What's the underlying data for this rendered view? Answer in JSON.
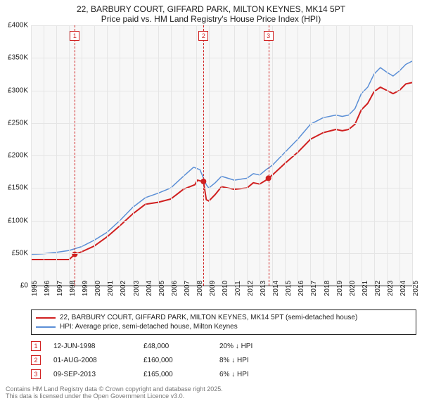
{
  "title": {
    "line1": "22, BARBURY COURT, GIFFARD PARK, MILTON KEYNES, MK14 5PT",
    "line2": "Price paid vs. HM Land Registry's House Price Index (HPI)"
  },
  "chart": {
    "type": "line",
    "background_color": "#f7f7f7",
    "grid_color": "#e5e5e5",
    "ylim": [
      0,
      400000
    ],
    "ytick_step": 50000,
    "ytick_labels": [
      "£0",
      "£50K",
      "£100K",
      "£150K",
      "£200K",
      "£250K",
      "£300K",
      "£350K",
      "£400K"
    ],
    "xlim": [
      1995,
      2025
    ],
    "xtick_step": 1,
    "xtick_labels": [
      "1995",
      "1996",
      "1997",
      "1998",
      "1999",
      "2000",
      "2001",
      "2002",
      "2003",
      "2004",
      "2005",
      "2006",
      "2007",
      "2008",
      "2009",
      "2010",
      "2011",
      "2012",
      "2013",
      "2014",
      "2015",
      "2016",
      "2017",
      "2018",
      "2019",
      "2020",
      "2021",
      "2022",
      "2023",
      "2024",
      "2025"
    ],
    "series": [
      {
        "name": "price_paid",
        "color": "#d02020",
        "width": 2,
        "points": [
          [
            1995,
            40000
          ],
          [
            1996,
            40000
          ],
          [
            1997,
            40000
          ],
          [
            1998,
            40000
          ],
          [
            1998.45,
            48000
          ],
          [
            1999,
            52000
          ],
          [
            2000,
            61000
          ],
          [
            2001,
            75000
          ],
          [
            2002,
            92000
          ],
          [
            2003,
            110000
          ],
          [
            2004,
            125000
          ],
          [
            2005,
            128000
          ],
          [
            2006,
            133000
          ],
          [
            2007,
            148000
          ],
          [
            2007.9,
            155000
          ],
          [
            2008.1,
            162000
          ],
          [
            2008.5,
            160000
          ],
          [
            2008.58,
            160000
          ],
          [
            2008.8,
            132000
          ],
          [
            2009,
            130000
          ],
          [
            2009.5,
            140000
          ],
          [
            2010,
            152000
          ],
          [
            2010.5,
            150000
          ],
          [
            2011,
            148000
          ],
          [
            2012,
            150000
          ],
          [
            2012.5,
            158000
          ],
          [
            2013,
            156000
          ],
          [
            2013.5,
            162000
          ],
          [
            2013.69,
            165000
          ],
          [
            2014,
            170000
          ],
          [
            2015,
            188000
          ],
          [
            2016,
            205000
          ],
          [
            2017,
            225000
          ],
          [
            2018,
            235000
          ],
          [
            2019,
            240000
          ],
          [
            2019.5,
            238000
          ],
          [
            2020,
            240000
          ],
          [
            2020.5,
            248000
          ],
          [
            2021,
            270000
          ],
          [
            2021.5,
            280000
          ],
          [
            2022,
            298000
          ],
          [
            2022.5,
            305000
          ],
          [
            2023,
            300000
          ],
          [
            2023.5,
            295000
          ],
          [
            2024,
            300000
          ],
          [
            2024.5,
            310000
          ],
          [
            2025,
            312000
          ]
        ]
      },
      {
        "name": "hpi",
        "color": "#5b8fd6",
        "width": 1.5,
        "points": [
          [
            1995,
            48000
          ],
          [
            1996,
            49000
          ],
          [
            1997,
            51000
          ],
          [
            1998,
            54000
          ],
          [
            1999,
            60000
          ],
          [
            2000,
            70000
          ],
          [
            2001,
            82000
          ],
          [
            2002,
            100000
          ],
          [
            2003,
            120000
          ],
          [
            2004,
            135000
          ],
          [
            2005,
            142000
          ],
          [
            2006,
            150000
          ],
          [
            2007,
            168000
          ],
          [
            2007.8,
            182000
          ],
          [
            2008.3,
            178000
          ],
          [
            2008.8,
            155000
          ],
          [
            2009,
            150000
          ],
          [
            2009.5,
            158000
          ],
          [
            2010,
            168000
          ],
          [
            2010.5,
            165000
          ],
          [
            2011,
            162000
          ],
          [
            2012,
            165000
          ],
          [
            2012.5,
            172000
          ],
          [
            2013,
            170000
          ],
          [
            2013.5,
            178000
          ],
          [
            2014,
            185000
          ],
          [
            2015,
            205000
          ],
          [
            2016,
            225000
          ],
          [
            2017,
            248000
          ],
          [
            2018,
            258000
          ],
          [
            2019,
            262000
          ],
          [
            2019.5,
            260000
          ],
          [
            2020,
            262000
          ],
          [
            2020.5,
            272000
          ],
          [
            2021,
            295000
          ],
          [
            2021.5,
            305000
          ],
          [
            2022,
            325000
          ],
          [
            2022.5,
            335000
          ],
          [
            2023,
            328000
          ],
          [
            2023.5,
            322000
          ],
          [
            2024,
            330000
          ],
          [
            2024.5,
            340000
          ],
          [
            2025,
            345000
          ]
        ]
      }
    ],
    "event_lines": [
      {
        "n": "1",
        "x": 1998.45,
        "color": "#d02020"
      },
      {
        "n": "2",
        "x": 2008.58,
        "color": "#d02020"
      },
      {
        "n": "3",
        "x": 2013.69,
        "color": "#d02020"
      }
    ],
    "sale_markers": [
      {
        "x": 1998.45,
        "y": 48000,
        "color": "#d02020"
      },
      {
        "x": 2008.58,
        "y": 160000,
        "color": "#d02020"
      },
      {
        "x": 2013.69,
        "y": 165000,
        "color": "#d02020"
      }
    ]
  },
  "legend": {
    "items": [
      {
        "color": "#d02020",
        "label": "22, BARBURY COURT, GIFFARD PARK, MILTON KEYNES, MK14 5PT (semi-detached house)"
      },
      {
        "color": "#5b8fd6",
        "label": "HPI: Average price, semi-detached house, Milton Keynes"
      }
    ]
  },
  "events": [
    {
      "n": "1",
      "date": "12-JUN-1998",
      "price": "£48,000",
      "delta": "20% ↓ HPI"
    },
    {
      "n": "2",
      "date": "01-AUG-2008",
      "price": "£160,000",
      "delta": "8% ↓ HPI"
    },
    {
      "n": "3",
      "date": "09-SEP-2013",
      "price": "£165,000",
      "delta": "6% ↓ HPI"
    }
  ],
  "footer": {
    "line1": "Contains HM Land Registry data © Crown copyright and database right 2025.",
    "line2": "This data is licensed under the Open Government Licence v3.0."
  }
}
